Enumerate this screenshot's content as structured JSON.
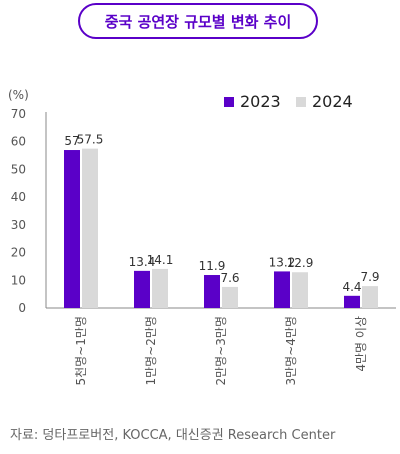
{
  "chart_data": {
    "type": "bar",
    "title": "중국 공연장 규모별 변화 추이",
    "y_unit": "(%)",
    "ylim": [
      0,
      70
    ],
    "yticks": [
      0,
      10,
      20,
      30,
      40,
      50,
      60,
      70
    ],
    "grid": false,
    "legend_position": "top-right",
    "categories": [
      "5천명~1만명",
      "1만명~2만명",
      "2만명~3만명",
      "3만명~4만명",
      "4만명 이상"
    ],
    "series": [
      {
        "name": "2023",
        "color": "#5a00c8",
        "values": [
          57,
          13.4,
          11.9,
          13.2,
          4.4
        ]
      },
      {
        "name": "2024",
        "color": "#d9d9d9",
        "values": [
          57.5,
          14.1,
          7.6,
          12.9,
          7.9
        ]
      }
    ]
  },
  "source": "자료: 덩타프로버전, KOCCA, 대신증권 Research Center"
}
